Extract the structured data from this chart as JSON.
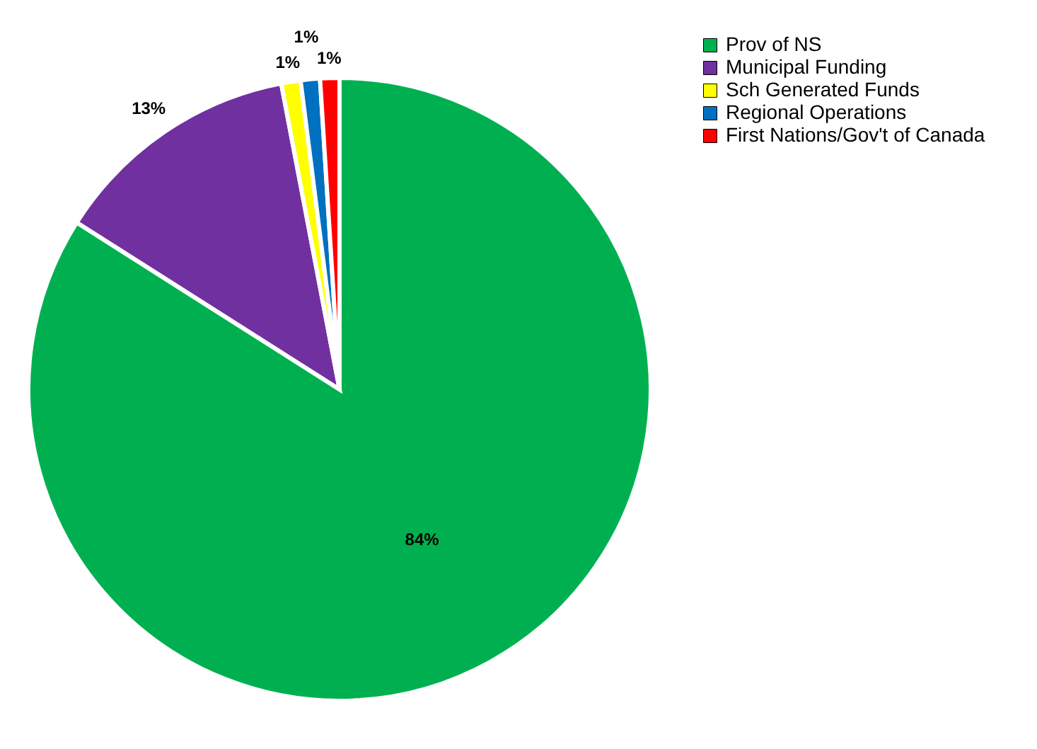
{
  "chart_data": {
    "type": "pie",
    "categories": [
      "Prov of NS",
      "Municipal Funding",
      "Sch Generated Funds",
      "Regional Operations",
      "First Nations/Gov't of Canada"
    ],
    "values": [
      84,
      13,
      1,
      1,
      1
    ],
    "colors": [
      "#00b050",
      "#7030a0",
      "#ffff00",
      "#0070c0",
      "#ff0000"
    ],
    "value_labels": [
      "84%",
      "13%",
      "1%",
      "1%",
      "1%"
    ],
    "legend": "right"
  }
}
